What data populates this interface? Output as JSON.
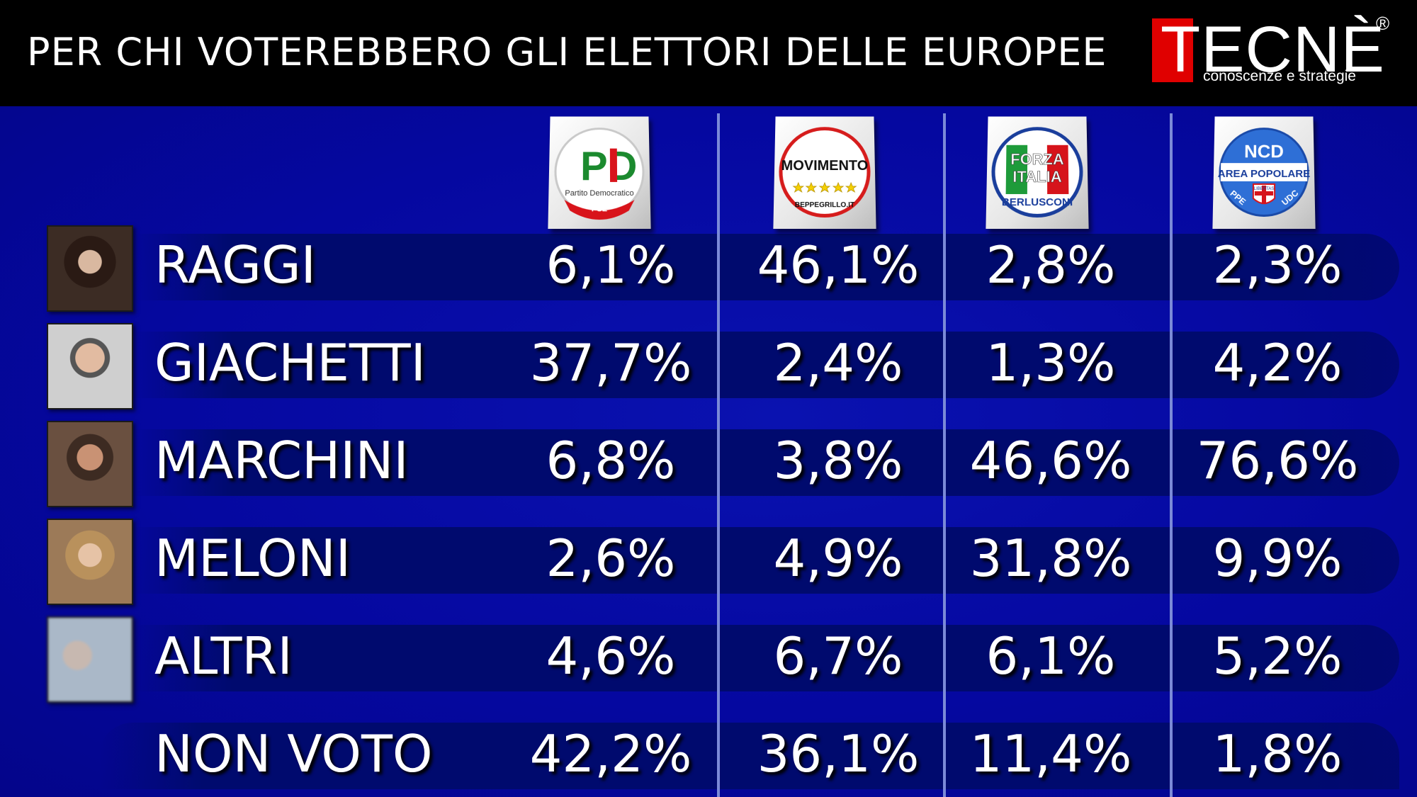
{
  "header": {
    "title": "PER CHI VOTEREBBERO GLI ELETTORI DELLE EUROPEE",
    "logo_text": "TECNÈ",
    "logo_registered": "®",
    "logo_tagline": "conoscenze e strategie"
  },
  "colors": {
    "background": "#05069a",
    "header": "#000000",
    "band": "#000a6e",
    "separator": "#7b8ad8",
    "logo_red": "#e00000",
    "text": "#ffffff"
  },
  "party_logos": [
    {
      "icon": "pd-logo-icon",
      "lines": [
        "PD",
        "Partito Democratico",
        "PSE"
      ]
    },
    {
      "icon": "m5s-logo-icon",
      "lines": [
        "MOVIMENTO",
        "BEPPEGRILLO.IT"
      ]
    },
    {
      "icon": "forza-italia-logo-icon",
      "lines": [
        "FORZA",
        "ITALIA",
        "BERLUSCONI"
      ]
    },
    {
      "icon": "ncd-logo-icon",
      "lines": [
        "NCD",
        "AREA POPOLARE",
        "PPE",
        "LIBERTAS",
        "UDC"
      ]
    }
  ],
  "chart_data": {
    "type": "table",
    "title": "PER CHI VOTEREBBERO GLI ELETTORI DELLE EUROPEE",
    "columns": [
      "Partito Democratico",
      "Movimento 5 Stelle",
      "Forza Italia",
      "NCD Area Popolare"
    ],
    "rows": [
      {
        "label": "RAGGI",
        "photo": "raggi-photo",
        "values": [
          "6,1%",
          "46,1%",
          "2,8%",
          "2,3%"
        ]
      },
      {
        "label": "GIACHETTI",
        "photo": "giachetti-photo",
        "values": [
          "37,7%",
          "2,4%",
          "1,3%",
          "4,2%"
        ]
      },
      {
        "label": "MARCHINI",
        "photo": "marchini-photo",
        "values": [
          "6,8%",
          "3,8%",
          "46,6%",
          "76,6%"
        ]
      },
      {
        "label": "MELONI",
        "photo": "meloni-photo",
        "values": [
          "2,6%",
          "4,9%",
          "31,8%",
          "9,9%"
        ]
      },
      {
        "label": "ALTRI",
        "photo": "altri-photo",
        "values": [
          "4,6%",
          "6,7%",
          "6,1%",
          "5,2%"
        ]
      },
      {
        "label": "NON VOTO",
        "photo": "",
        "values": [
          "42,2%",
          "36,1%",
          "11,4%",
          "1,8%"
        ]
      }
    ]
  }
}
